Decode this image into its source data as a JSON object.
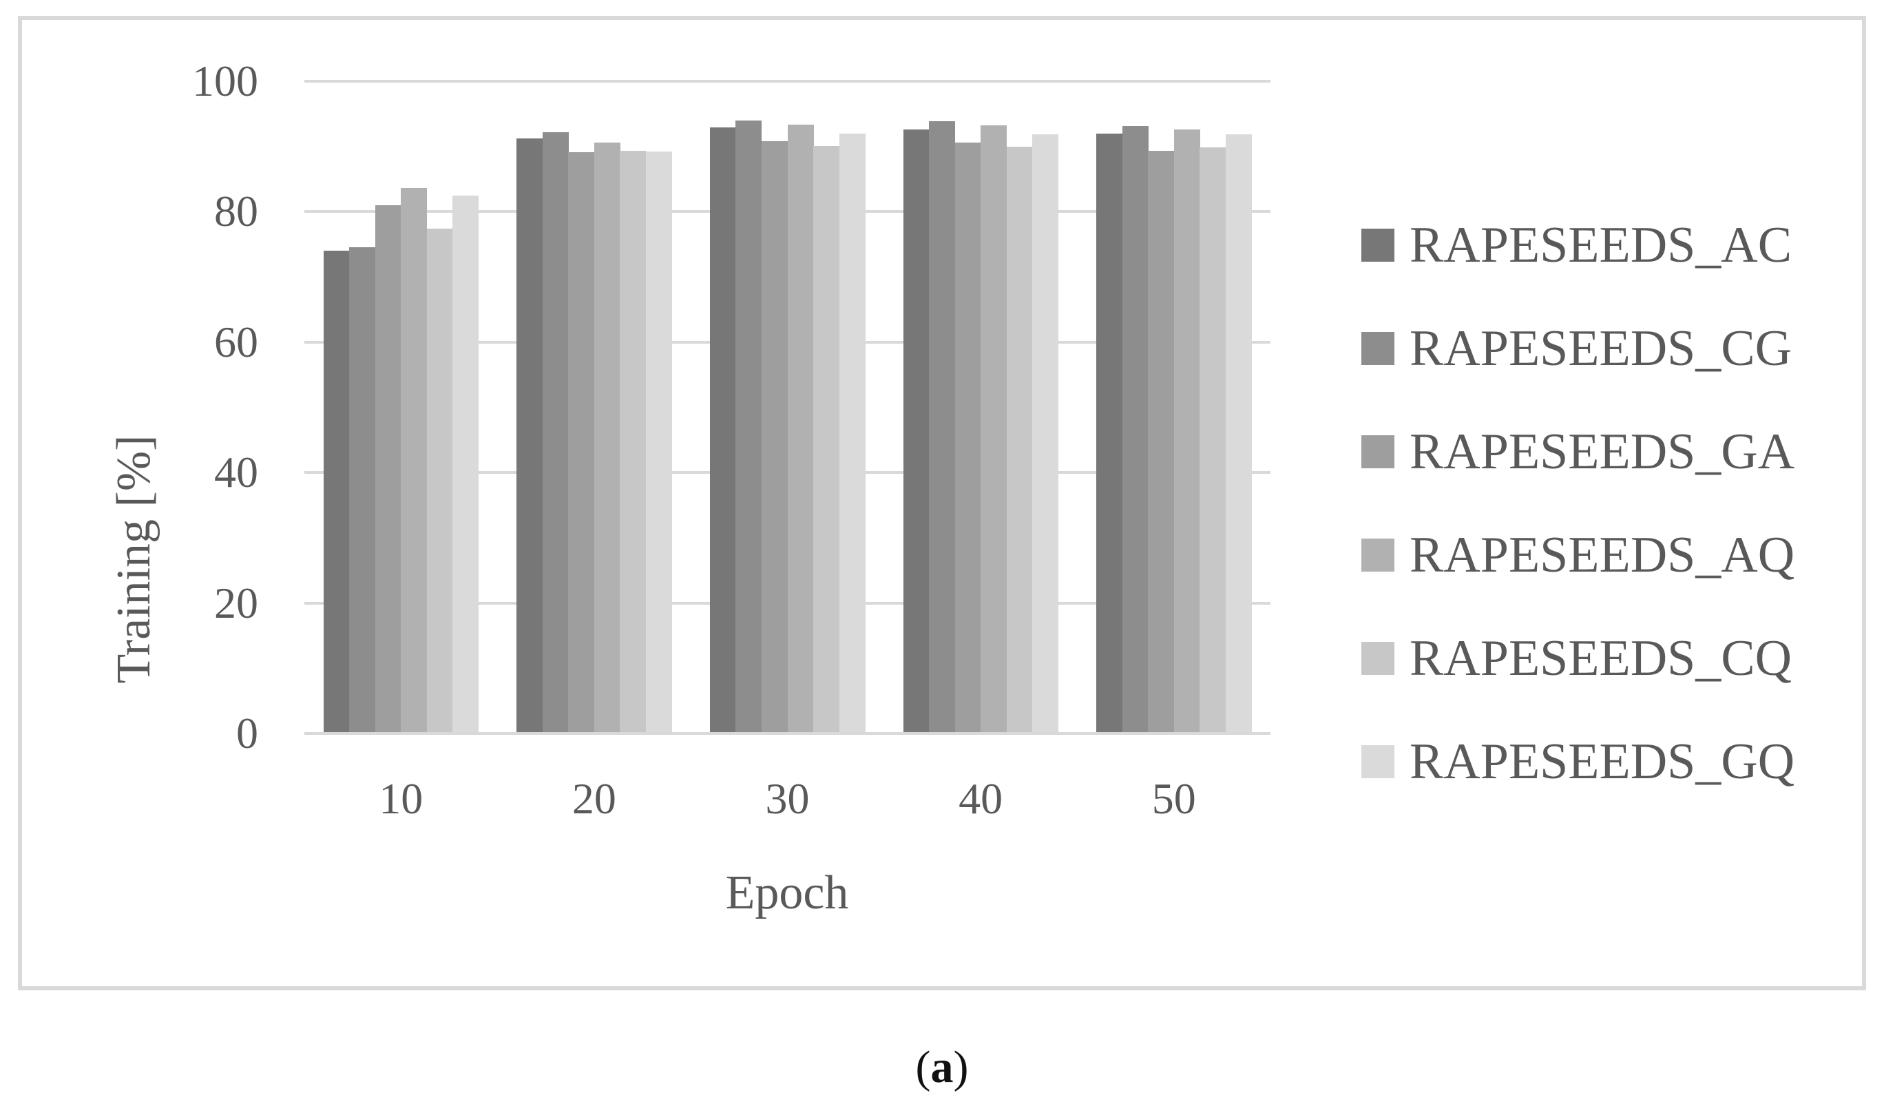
{
  "chart_data": {
    "type": "bar",
    "title": "",
    "xlabel": "Epoch",
    "ylabel": "Training [%]",
    "categories": [
      "10",
      "20",
      "30",
      "40",
      "50"
    ],
    "series": [
      {
        "name": "RAPESEEDS_AC",
        "color": "#777777",
        "values": [
          74.0,
          91.2,
          92.9,
          92.6,
          92.0
        ]
      },
      {
        "name": "RAPESEEDS_CG",
        "color": "#8d8d8d",
        "values": [
          74.6,
          92.2,
          94.0,
          93.9,
          93.1
        ]
      },
      {
        "name": "RAPESEEDS_GA",
        "color": "#9e9e9e",
        "values": [
          81.0,
          89.1,
          90.8,
          90.6,
          89.3
        ]
      },
      {
        "name": "RAPESEEDS_AQ",
        "color": "#b1b1b1",
        "values": [
          83.6,
          90.6,
          93.4,
          93.2,
          92.6
        ]
      },
      {
        "name": "RAPESEEDS_CQ",
        "color": "#c7c7c7",
        "values": [
          77.4,
          89.3,
          90.1,
          90.0,
          89.9
        ]
      },
      {
        "name": "RAPESEEDS_GQ",
        "color": "#dadada",
        "values": [
          82.5,
          89.2,
          92.0,
          91.9,
          91.9
        ]
      }
    ],
    "ylim": [
      0,
      100
    ],
    "yticks": [
      0,
      20,
      40,
      60,
      80,
      100
    ],
    "grid": true,
    "legend_position": "right",
    "gridline_color": "#d9d9d9",
    "axis_line_color": "#d9d9d9",
    "text_color": "#595959"
  },
  "caption": {
    "open": "(",
    "letter": "a",
    "close": ")"
  }
}
